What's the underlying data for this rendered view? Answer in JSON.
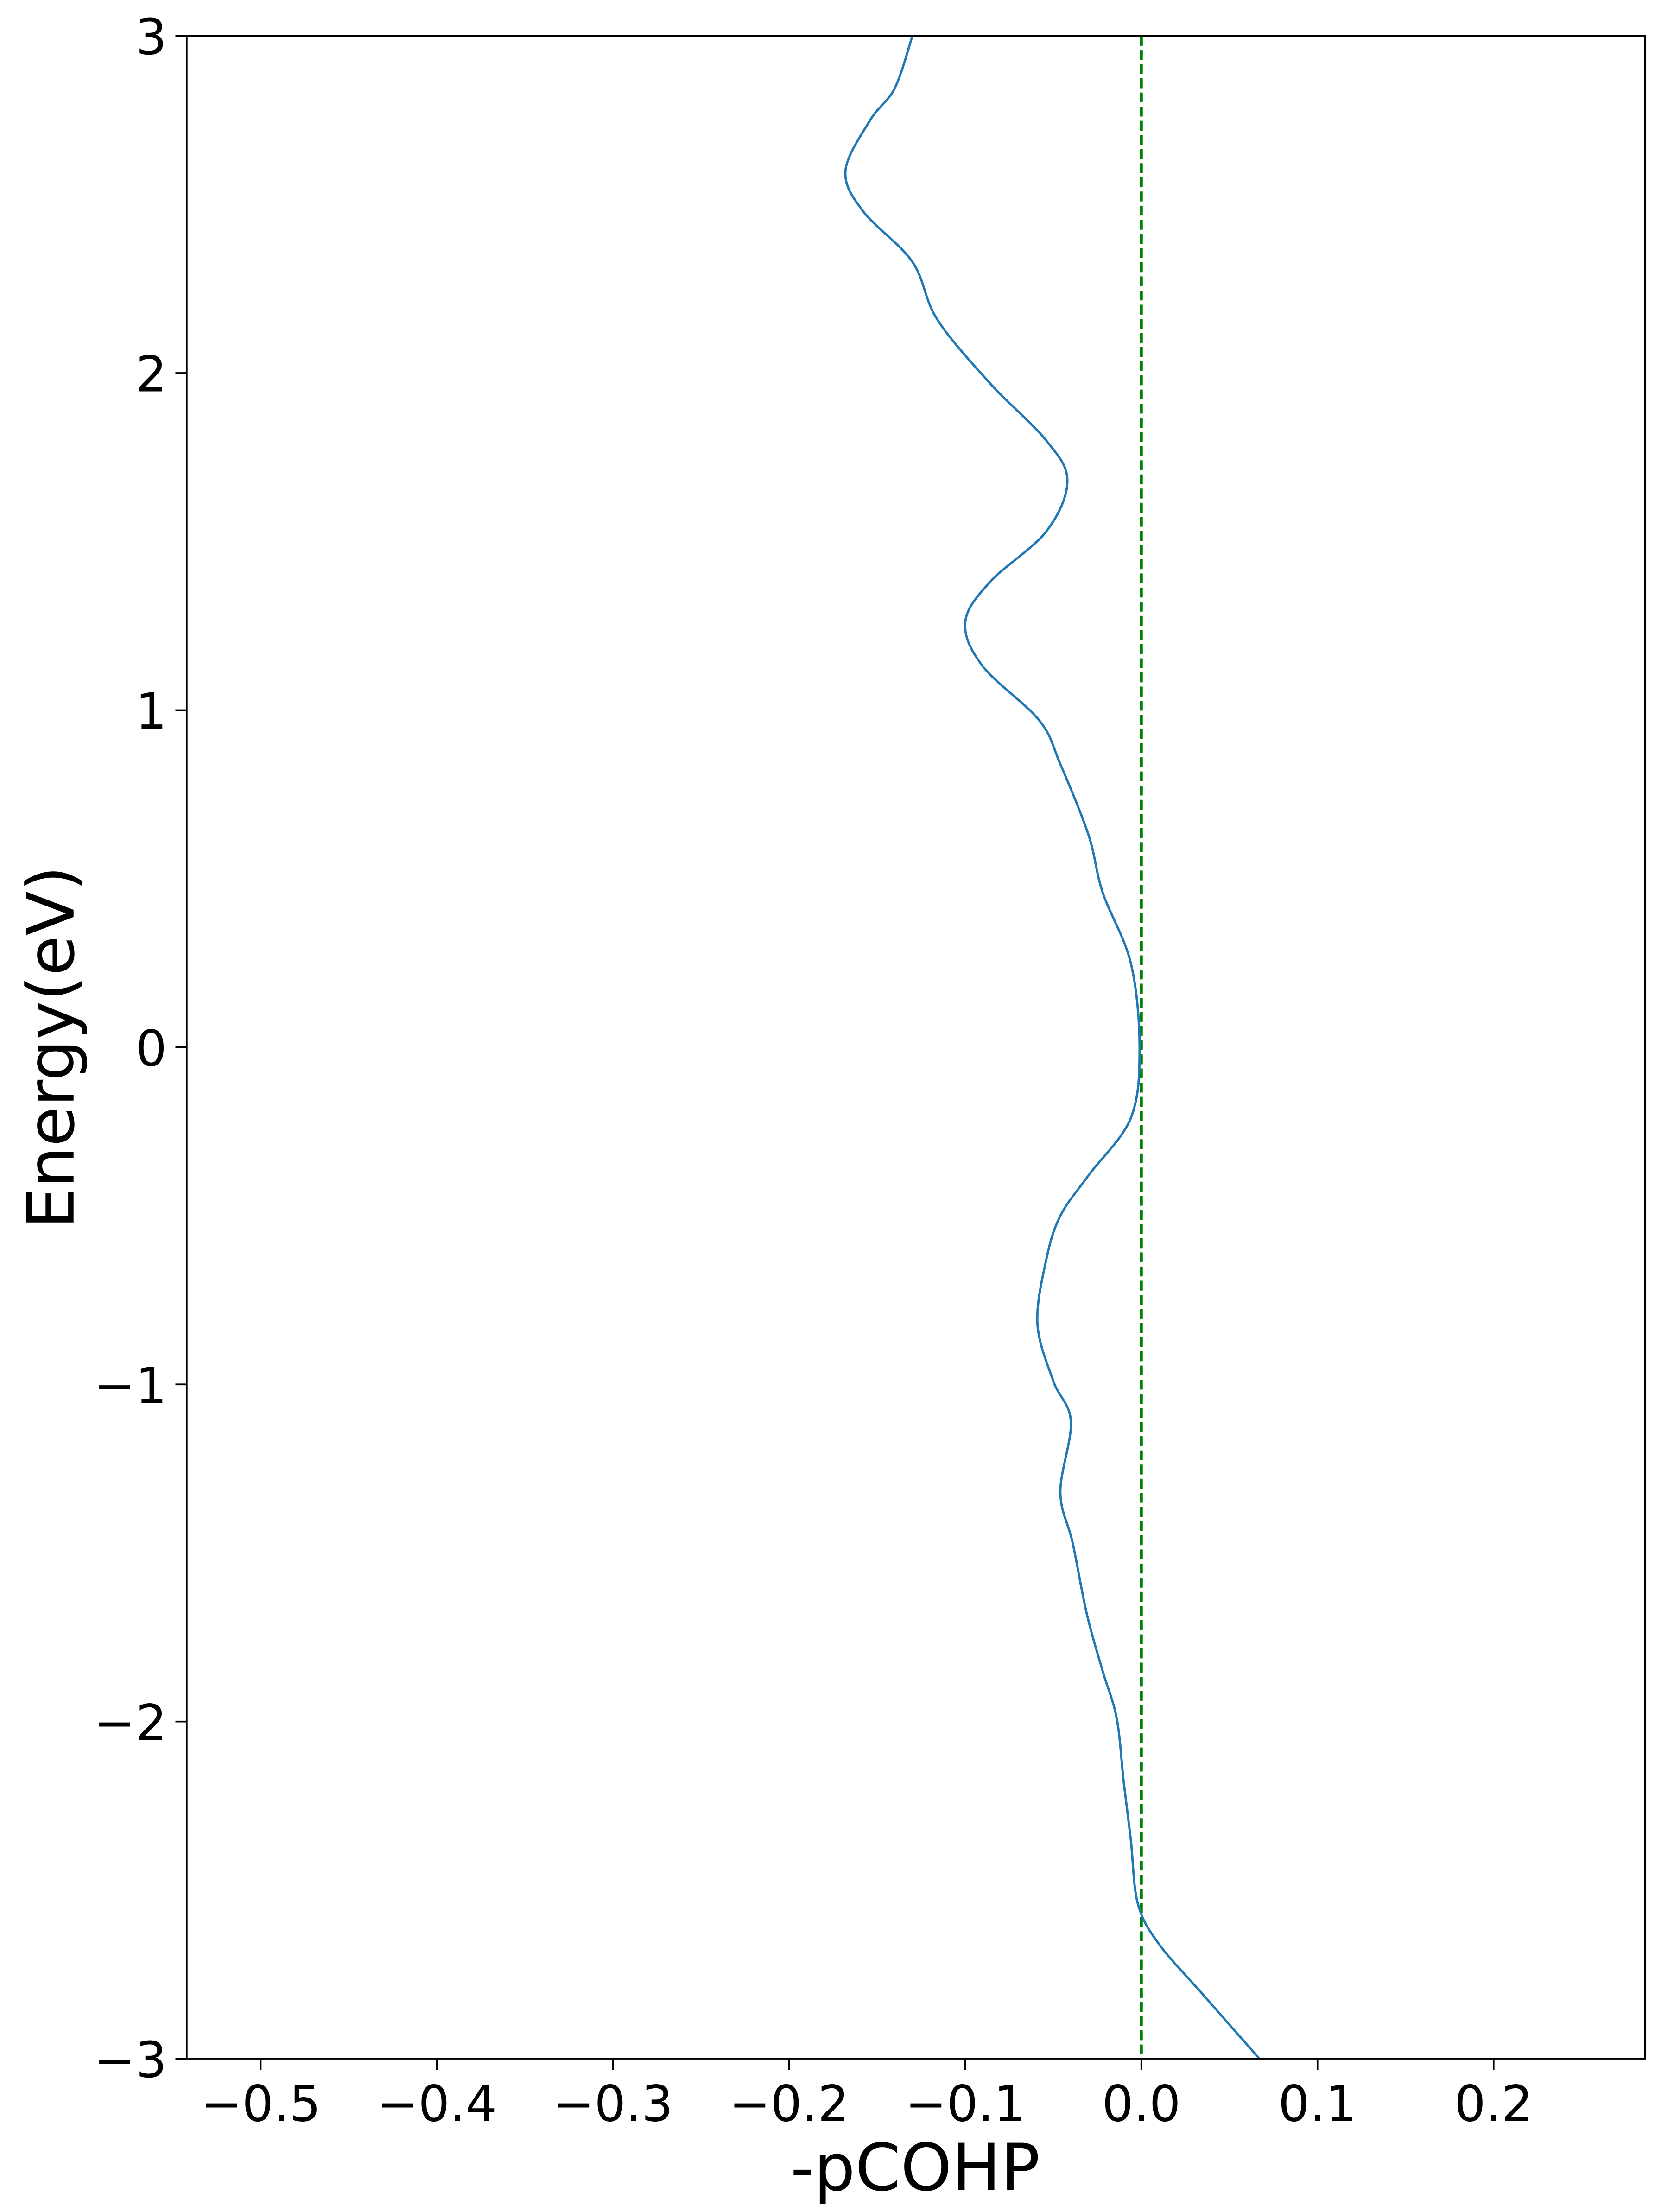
{
  "chart_data": {
    "type": "line",
    "title": "",
    "xlabel": "-pCOHP",
    "ylabel": "Energy(eV)",
    "xlim": [
      -0.542,
      0.286
    ],
    "ylim": [
      -3,
      3
    ],
    "xticks": [
      -0.5,
      -0.4,
      -0.3,
      -0.2,
      -0.1,
      0.0,
      0.1,
      0.2
    ],
    "xtick_labels": [
      "−0.5",
      "−0.4",
      "−0.3",
      "−0.2",
      "−0.1",
      "0.0",
      "0.1",
      "0.2"
    ],
    "yticks": [
      -3,
      -2,
      -1,
      0,
      1,
      2,
      3
    ],
    "ytick_labels": [
      "−3",
      "−2",
      "−1",
      "0",
      "1",
      "2",
      "3"
    ],
    "grid": false,
    "reference_line": {
      "x": 0.0,
      "style": "dashed",
      "color": "#008000"
    },
    "series": [
      {
        "color": "#1f77b4",
        "points": [
          [
            -0.13,
            3.0
          ],
          [
            -0.14,
            2.845
          ],
          [
            -0.154,
            2.75
          ],
          [
            -0.168,
            2.6
          ],
          [
            -0.158,
            2.48
          ],
          [
            -0.13,
            2.33
          ],
          [
            -0.116,
            2.16
          ],
          [
            -0.086,
            1.97
          ],
          [
            -0.054,
            1.8
          ],
          [
            -0.042,
            1.68
          ],
          [
            -0.054,
            1.53
          ],
          [
            -0.086,
            1.38
          ],
          [
            -0.1,
            1.26
          ],
          [
            -0.09,
            1.13
          ],
          [
            -0.058,
            0.97
          ],
          [
            -0.046,
            0.84
          ],
          [
            -0.03,
            0.63
          ],
          [
            -0.022,
            0.46
          ],
          [
            -0.006,
            0.25
          ],
          [
            -0.001,
            0.0
          ],
          [
            -0.006,
            -0.21
          ],
          [
            -0.03,
            -0.38
          ],
          [
            -0.046,
            -0.5
          ],
          [
            -0.054,
            -0.63
          ],
          [
            -0.059,
            -0.82
          ],
          [
            -0.05,
            -0.99
          ],
          [
            -0.04,
            -1.11
          ],
          [
            -0.046,
            -1.32
          ],
          [
            -0.039,
            -1.47
          ],
          [
            -0.031,
            -1.68
          ],
          [
            -0.022,
            -1.85
          ],
          [
            -0.014,
            -1.99
          ],
          [
            -0.01,
            -2.18
          ],
          [
            -0.006,
            -2.35
          ],
          [
            -0.002,
            -2.54
          ],
          [
            0.01,
            -2.66
          ],
          [
            0.035,
            -2.81
          ],
          [
            0.067,
            -3.0
          ]
        ]
      }
    ]
  }
}
